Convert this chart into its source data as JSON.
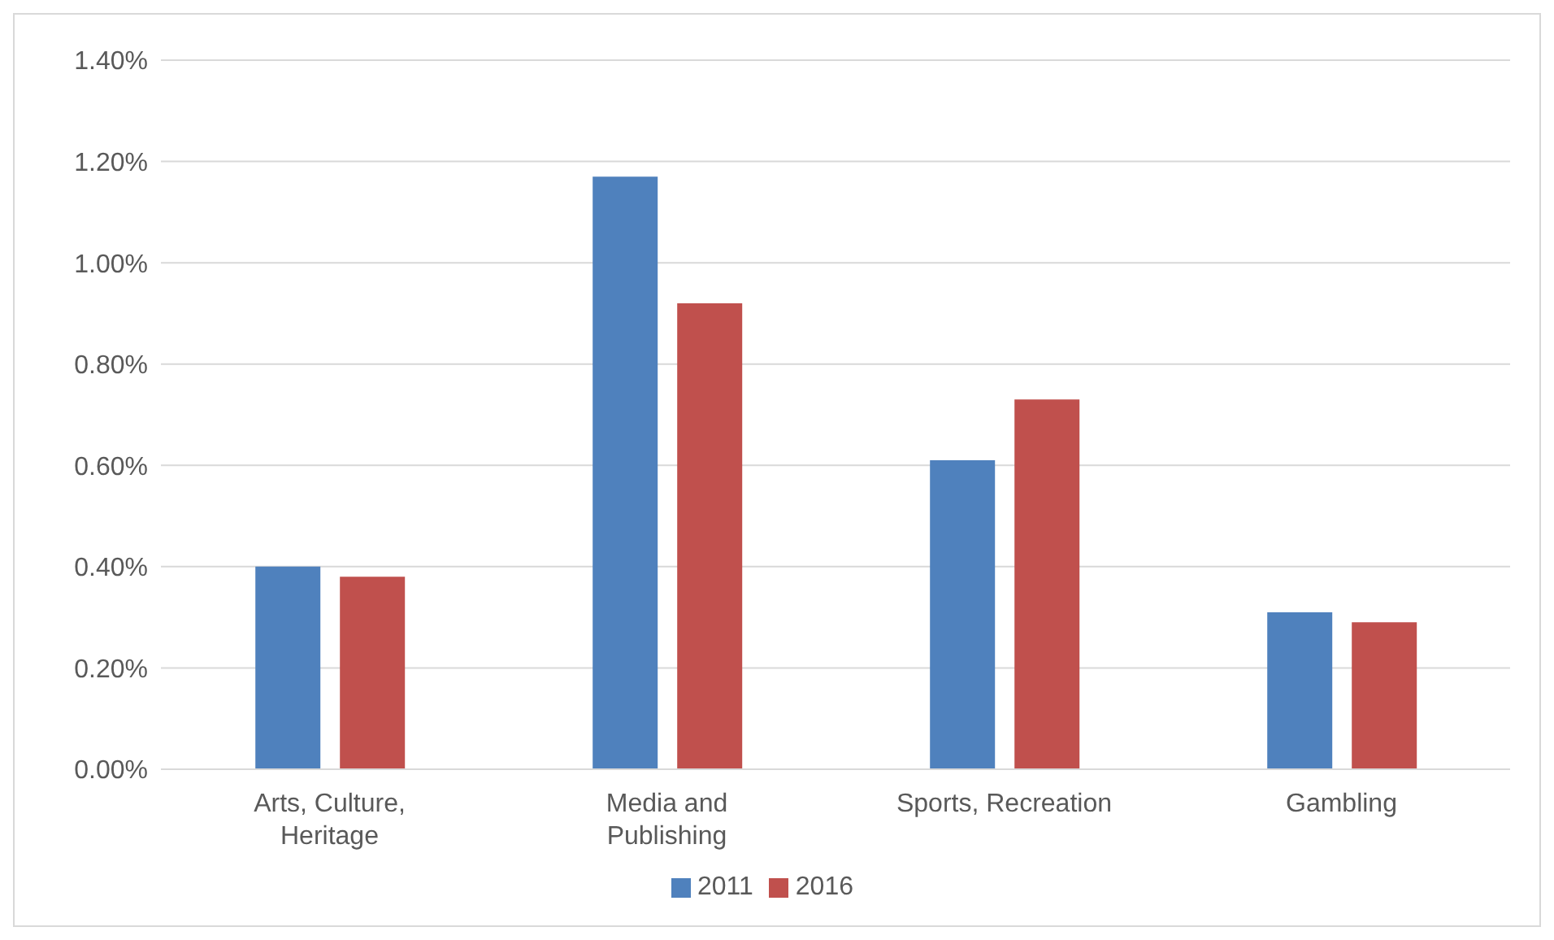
{
  "chart_data": {
    "type": "bar",
    "categories": [
      "Arts, Culture, Heritage",
      "Media and Publishing",
      "Sports, Recreation",
      "Gambling"
    ],
    "series": [
      {
        "name": "2011",
        "color": "#4f81bd",
        "values": [
          0.4,
          1.17,
          0.61,
          0.31
        ]
      },
      {
        "name": "2016",
        "color": "#c0504d",
        "values": [
          0.38,
          0.92,
          0.73,
          0.29
        ]
      }
    ],
    "ylim": [
      0,
      1.4
    ],
    "yticks": [
      {
        "value": 0,
        "label": "0.00%"
      },
      {
        "value": 0.2,
        "label": "0.20%"
      },
      {
        "value": 0.4,
        "label": "0.40%"
      },
      {
        "value": 0.6,
        "label": "0.60%"
      },
      {
        "value": 0.8,
        "label": "0.80%"
      },
      {
        "value": 1.0,
        "label": "1.00%"
      },
      {
        "value": 1.2,
        "label": "1.20%"
      },
      {
        "value": 1.4,
        "label": "1.40%"
      }
    ],
    "grid": "y",
    "legend": "bottom"
  }
}
